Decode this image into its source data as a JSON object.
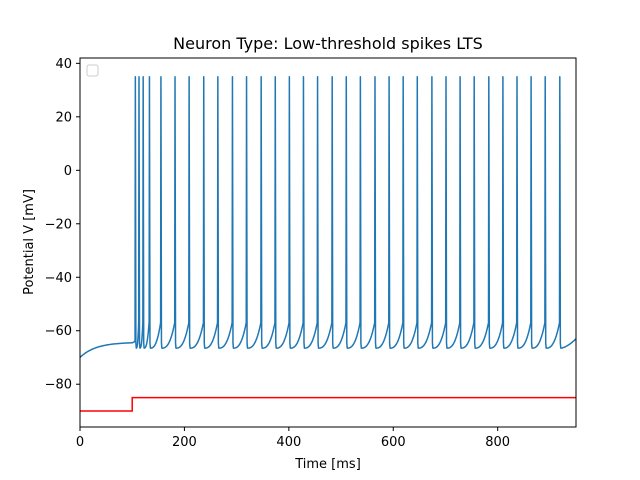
{
  "chart_data": {
    "type": "line",
    "title": "Neuron Type: Low-threshold spikes LTS",
    "xlabel": "Time [ms]",
    "ylabel": "Potential V [mV]",
    "xlim": [
      0,
      950
    ],
    "ylim": [
      -96,
      42
    ],
    "xticks": [
      0,
      200,
      400,
      600,
      800
    ],
    "yticks": [
      -80,
      -60,
      -40,
      -20,
      0,
      20,
      40
    ],
    "grid": false,
    "legend": "upper-left (empty)",
    "series": [
      {
        "color": "#1f77b4",
        "resting_start": -70,
        "pre_stimulus_end": -64.5,
        "spike_peak": 35,
        "trough": -66.5,
        "end_value": -63,
        "spike_times": [
          106,
          113,
          121,
          133,
          155,
          182,
          209,
          237,
          264,
          292,
          319,
          347,
          374,
          401,
          428,
          455,
          483,
          510,
          537,
          565,
          592,
          619,
          646,
          674,
          701,
          728,
          755,
          783,
          810,
          837,
          864,
          891,
          919
        ]
      },
      {
        "color": "#ff0000",
        "x": [
          0,
          100,
          100,
          950
        ],
        "y": [
          -90,
          -90,
          -85,
          -85
        ]
      }
    ]
  }
}
